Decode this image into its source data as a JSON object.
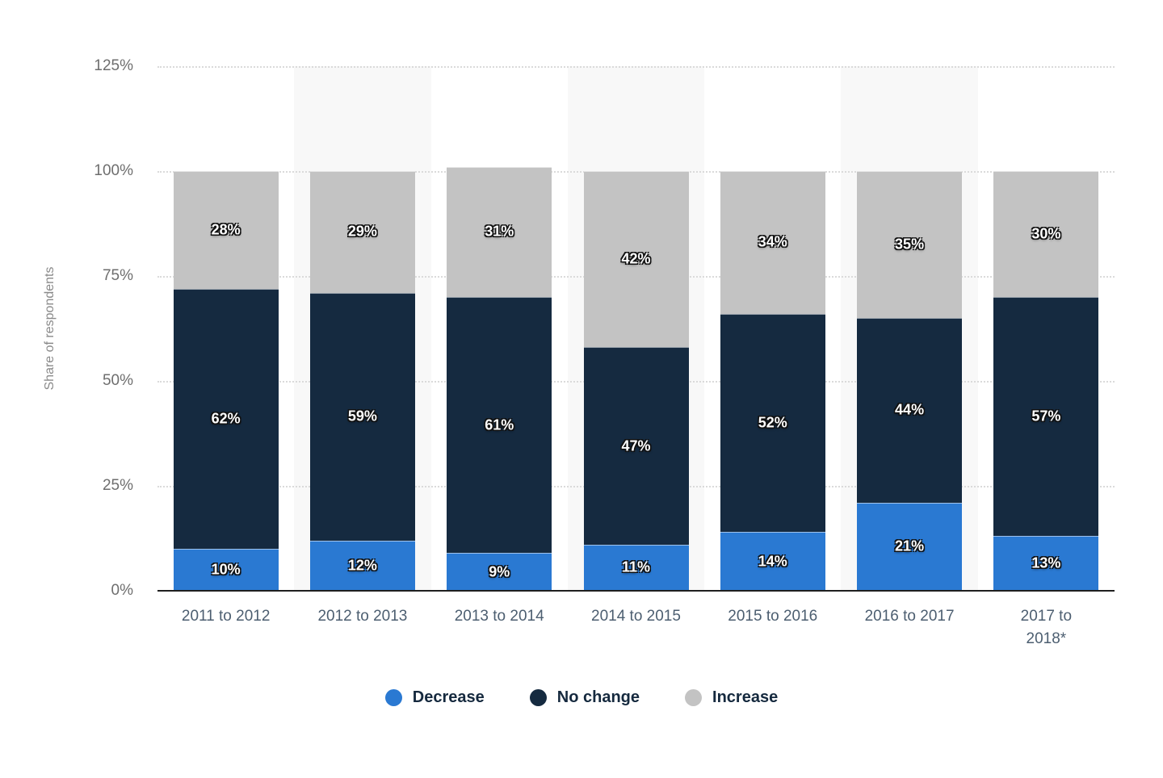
{
  "chart_data": {
    "type": "bar",
    "stacked": true,
    "title": "",
    "xlabel": "",
    "ylabel": "Share of respondents",
    "ylim": [
      0,
      125
    ],
    "yticks": [
      0,
      25,
      50,
      75,
      100,
      125
    ],
    "ytick_suffix": "%",
    "value_label_suffix": "%",
    "grid": "dotted-horizontal",
    "legend_position": "bottom",
    "categories": [
      "2011 to 2012",
      "2012 to 2013",
      "2013 to 2014",
      "2014 to 2015",
      "2015 to 2016",
      "2016 to 2017",
      "2017 to\n2018*"
    ],
    "series": [
      {
        "name": "Decrease",
        "color": "#2a79d2",
        "values": [
          10,
          12,
          9,
          11,
          14,
          21,
          13
        ]
      },
      {
        "name": "No change",
        "color": "#152a40",
        "values": [
          62,
          59,
          61,
          47,
          52,
          44,
          57
        ]
      },
      {
        "name": "Increase",
        "color": "#c3c3c3",
        "values": [
          28,
          29,
          31,
          42,
          34,
          35,
          30
        ]
      }
    ]
  }
}
